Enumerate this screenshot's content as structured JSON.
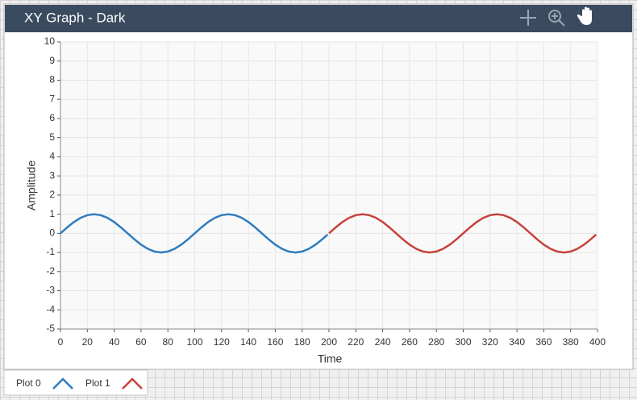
{
  "chart_data": {
    "type": "line",
    "title": "XY Graph - Dark",
    "x_label": "Time",
    "y_label": "Amplitude",
    "series": [
      {
        "name": "Plot 0",
        "color": "#2f7cbf",
        "x": [
          0,
          5,
          10,
          15,
          20,
          25,
          30,
          35,
          40,
          45,
          50,
          55,
          60,
          65,
          70,
          75,
          80,
          85,
          90,
          95,
          100,
          105,
          110,
          115,
          120,
          125,
          130,
          135,
          140,
          145,
          150,
          155,
          160,
          165,
          170,
          175,
          180,
          185,
          190,
          195,
          199
        ],
        "values": [
          0,
          0.31,
          0.59,
          0.81,
          0.95,
          1,
          0.95,
          0.81,
          0.59,
          0.31,
          0,
          -0.31,
          -0.59,
          -0.81,
          -0.95,
          -1,
          -0.95,
          -0.81,
          -0.59,
          -0.31,
          0,
          0.31,
          0.59,
          0.81,
          0.95,
          1,
          0.95,
          0.81,
          0.59,
          0.31,
          0,
          -0.31,
          -0.59,
          -0.81,
          -0.95,
          -1,
          -0.95,
          -0.81,
          -0.59,
          -0.31,
          -0.06
        ]
      },
      {
        "name": "Plot 1",
        "color": "#c7423a",
        "x": [
          200,
          205,
          210,
          215,
          220,
          225,
          230,
          235,
          240,
          245,
          250,
          255,
          260,
          265,
          270,
          275,
          280,
          285,
          290,
          295,
          300,
          305,
          310,
          315,
          320,
          325,
          330,
          335,
          340,
          345,
          350,
          355,
          360,
          365,
          370,
          375,
          380,
          385,
          390,
          395,
          399
        ],
        "values": [
          0,
          0.31,
          0.59,
          0.81,
          0.95,
          1,
          0.95,
          0.81,
          0.59,
          0.31,
          0,
          -0.31,
          -0.59,
          -0.81,
          -0.95,
          -1,
          -0.95,
          -0.81,
          -0.59,
          -0.31,
          0,
          0.31,
          0.59,
          0.81,
          0.95,
          1,
          0.95,
          0.81,
          0.59,
          0.31,
          0,
          -0.31,
          -0.59,
          -0.81,
          -0.95,
          -1,
          -0.95,
          -0.81,
          -0.59,
          -0.31,
          -0.06
        ]
      }
    ],
    "xlim": [
      0,
      400
    ],
    "xticks": [
      0,
      20,
      40,
      60,
      80,
      100,
      120,
      140,
      160,
      180,
      200,
      220,
      240,
      260,
      280,
      300,
      320,
      340,
      360,
      380,
      400
    ],
    "ylim": [
      -5,
      10
    ],
    "yticks": [
      -5,
      -4,
      -3,
      -2,
      -1,
      0,
      1,
      2,
      3,
      4,
      5,
      6,
      7,
      8,
      9,
      10
    ],
    "grid": true
  }
}
